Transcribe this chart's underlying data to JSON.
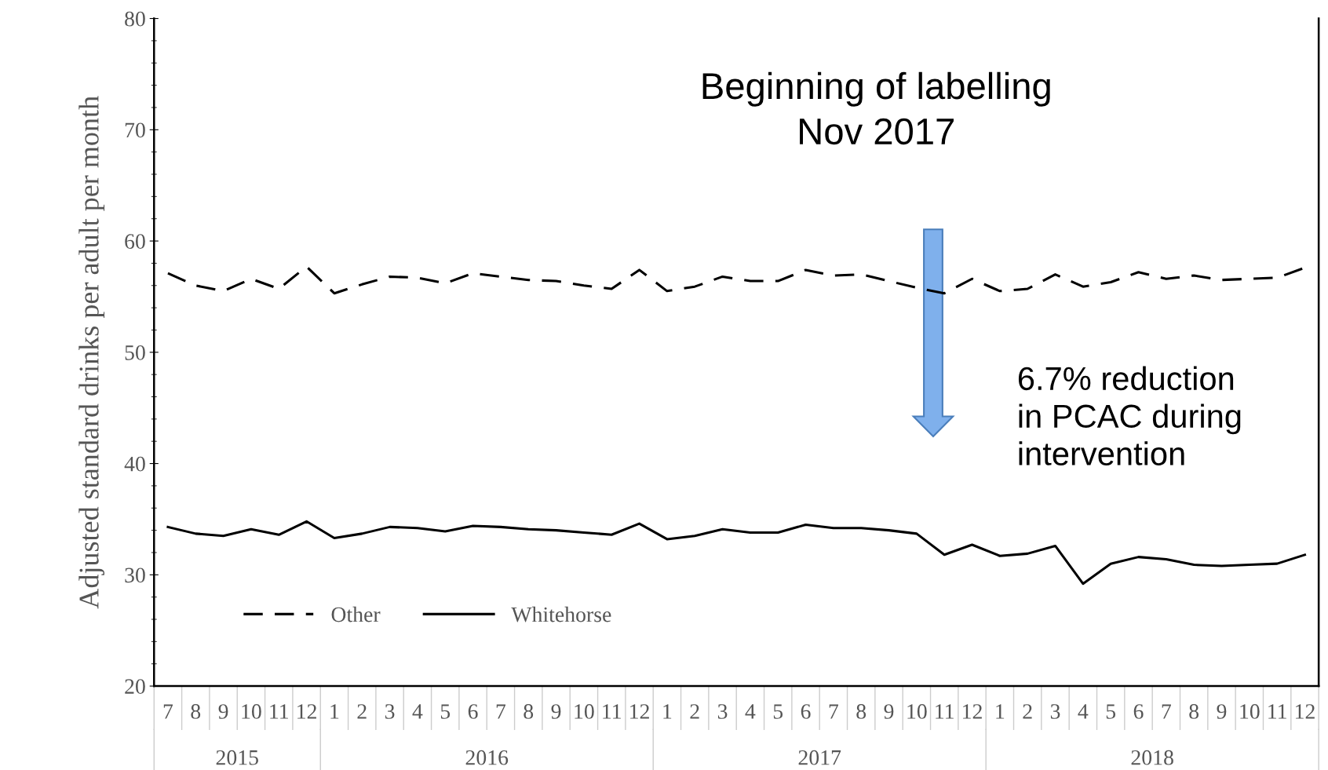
{
  "chart_data": {
    "type": "line",
    "ylabel": "Adjusted standard drinks per adult per month",
    "categories": [
      "7",
      "8",
      "9",
      "10",
      "11",
      "12",
      "1",
      "2",
      "3",
      "4",
      "5",
      "6",
      "7",
      "8",
      "9",
      "10",
      "11",
      "12",
      "1",
      "2",
      "3",
      "4",
      "5",
      "6",
      "7",
      "8",
      "9",
      "10",
      "11",
      "12",
      "1",
      "2",
      "3",
      "4",
      "5",
      "6",
      "7",
      "8",
      "9",
      "10",
      "11",
      "12"
    ],
    "series": [
      {
        "name": "Other",
        "color": "#000000",
        "line_style": "dashed",
        "values": [
          57.1,
          56.0,
          55.5,
          56.6,
          55.7,
          57.7,
          55.3,
          56.1,
          56.8,
          56.7,
          56.2,
          57.1,
          56.8,
          56.5,
          56.4,
          56.0,
          55.7,
          57.4,
          55.5,
          55.9,
          56.8,
          56.4,
          56.4,
          57.4,
          56.9,
          57.0,
          56.4,
          55.8,
          55.3,
          56.6,
          55.5,
          55.7,
          57.0,
          55.9,
          56.3,
          57.2,
          56.6,
          56.9,
          56.5,
          56.6,
          56.7,
          57.6
        ]
      },
      {
        "name": "Whitehorse",
        "color": "#000000",
        "line_style": "solid",
        "values": [
          34.3,
          33.7,
          33.5,
          34.1,
          33.6,
          34.8,
          33.3,
          33.7,
          34.3,
          34.2,
          33.9,
          34.4,
          34.3,
          34.1,
          34.0,
          33.8,
          33.6,
          34.6,
          33.2,
          33.5,
          34.1,
          33.8,
          33.8,
          34.5,
          34.2,
          34.2,
          34.0,
          33.7,
          31.8,
          32.7,
          31.7,
          31.9,
          32.6,
          29.2,
          31.0,
          31.6,
          31.4,
          30.9,
          30.8,
          30.9,
          31.0,
          31.8
        ]
      }
    ],
    "ylim": [
      20,
      80
    ],
    "yticks": [
      20,
      30,
      40,
      50,
      60,
      70,
      80
    ],
    "grid": false,
    "legend": "bottom left",
    "marker": "none",
    "annotations": [
      "2015",
      "2016",
      "2017",
      "2018",
      "Beginning of labelling\nNov 2017",
      "6.7% reduction\nin PCAC during\nintervention"
    ]
  }
}
